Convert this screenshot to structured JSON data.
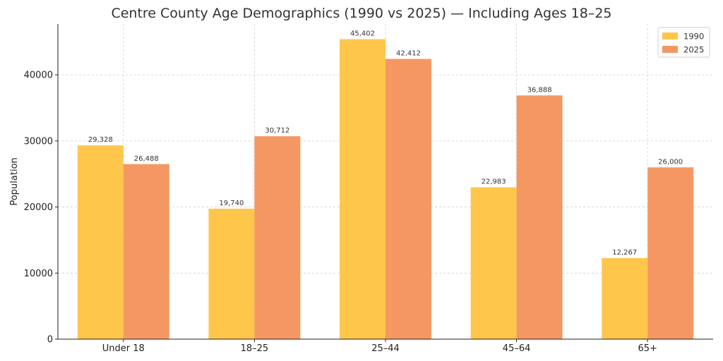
{
  "chart_data": {
    "type": "bar",
    "title": "Centre County Age Demographics (1990 vs 2025) — Including Ages 18–25",
    "xlabel": "",
    "ylabel": "Population",
    "categories": [
      "Under 18",
      "18–25",
      "25–44",
      "45–64",
      "65+"
    ],
    "series": [
      {
        "name": "1990",
        "color": "#ffc64c",
        "values": [
          29328,
          19740,
          45402,
          22983,
          12267
        ],
        "labels": [
          "29,328",
          "19,740",
          "45,402",
          "22,983",
          "12,267"
        ]
      },
      {
        "name": "2025",
        "color": "#f59762",
        "values": [
          26488,
          30712,
          42412,
          36888,
          26000
        ],
        "labels": [
          "26,488",
          "30,712",
          "42,412",
          "36,888",
          "26,000"
        ]
      }
    ],
    "ylim": [
      0,
      47700
    ],
    "yticks": [
      0,
      10000,
      20000,
      30000,
      40000
    ],
    "ytick_labels": [
      "0",
      "10000",
      "20000",
      "30000",
      "40000"
    ],
    "grid": true,
    "legend_position": "top-right"
  }
}
